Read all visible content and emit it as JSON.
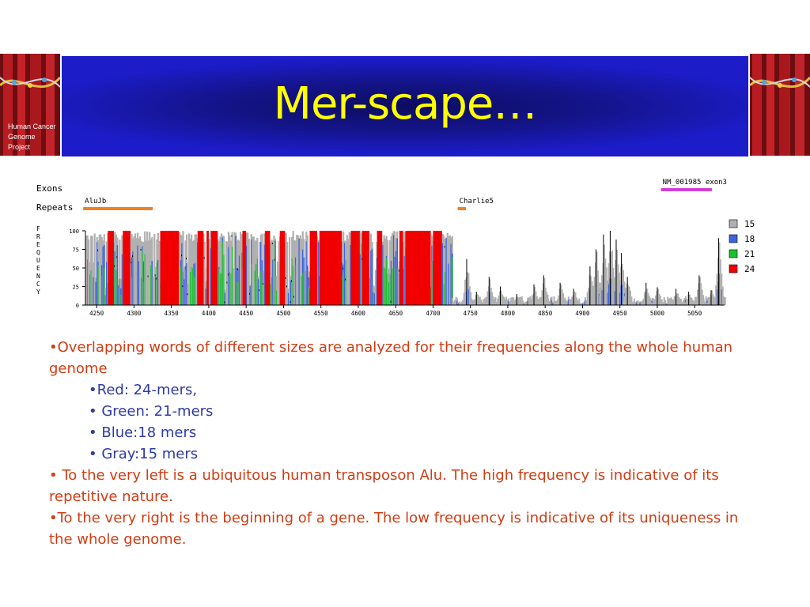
{
  "logo": {
    "line1": "Human Cancer",
    "line2": "Genome",
    "line3": "Project"
  },
  "slide": {
    "title": "Mer-scape…"
  },
  "chart_data": {
    "type": "area",
    "track_labels": {
      "exons": "Exons",
      "repeats": "Repeats"
    },
    "ylabel": "FREQUENCY",
    "ylim": [
      0,
      100
    ],
    "y_ticks": [
      "100",
      "75",
      "50",
      "25",
      "0"
    ],
    "xlim": [
      4235,
      5090
    ],
    "x_ticks": [
      "4250",
      "4300",
      "4350",
      "4400",
      "4450",
      "4500",
      "4550",
      "4600",
      "4650",
      "4700",
      "4750",
      "4800",
      "4850",
      "4900",
      "4950",
      "5000",
      "5050"
    ],
    "repeats": [
      {
        "name": "AluJb",
        "start": 4232,
        "end": 4325
      },
      {
        "name": "Charlie5",
        "start": 4733,
        "end": 4744
      }
    ],
    "exons": [
      {
        "name": "NM_001985 exon3",
        "start": 5005,
        "end": 5073
      }
    ],
    "series": [
      {
        "name": "15",
        "color": "#b0b0b0"
      },
      {
        "name": "18",
        "color": "#3c64dc"
      },
      {
        "name": "21",
        "color": "#19c32d"
      },
      {
        "name": "24",
        "color": "#f00000"
      }
    ],
    "red_blocks": [
      [
        4265,
        4273
      ],
      [
        4285,
        4295
      ],
      [
        4335,
        4360
      ],
      [
        4385,
        4393
      ],
      [
        4397,
        4400
      ],
      [
        4403,
        4412
      ],
      [
        4445,
        4450
      ],
      [
        4475,
        4482
      ],
      [
        4495,
        4502
      ],
      [
        4535,
        4545
      ],
      [
        4548,
        4578
      ],
      [
        4590,
        4602
      ],
      [
        4605,
        4615
      ],
      [
        4625,
        4632
      ],
      [
        4655,
        4660
      ],
      [
        4663,
        4697
      ],
      [
        4700,
        4712
      ]
    ],
    "gray_peaks": [
      [
        4745,
        62
      ],
      [
        4758,
        18
      ],
      [
        4775,
        38
      ],
      [
        4790,
        25
      ],
      [
        4812,
        15
      ],
      [
        4835,
        28
      ],
      [
        4848,
        40
      ],
      [
        4870,
        30
      ],
      [
        4888,
        22
      ],
      [
        4910,
        52
      ],
      [
        4918,
        75
      ],
      [
        4928,
        95
      ],
      [
        4937,
        100
      ],
      [
        4945,
        88
      ],
      [
        4952,
        70
      ],
      [
        4960,
        38
      ],
      [
        4985,
        30
      ],
      [
        5000,
        24
      ],
      [
        5025,
        22
      ],
      [
        5042,
        18
      ],
      [
        5056,
        40
      ],
      [
        5072,
        20
      ],
      [
        5082,
        90
      ]
    ]
  },
  "bullets": {
    "b1": "•Overlapping words of different sizes are analyzed for their frequencies along the whole human genome",
    "s1": "•Red: 24-mers,",
    "s2": "• Green: 21-mers",
    "s3": "• Blue:18 mers",
    "s4": "• Gray:15 mers",
    "b2": "• To the very left is a ubiquitous human transposon Alu. The high frequency is indicative of its repetitive nature.",
    "b3": "•To the very right is the beginning of a gene. The low frequency is indicative of its uniqueness in the whole genome."
  }
}
